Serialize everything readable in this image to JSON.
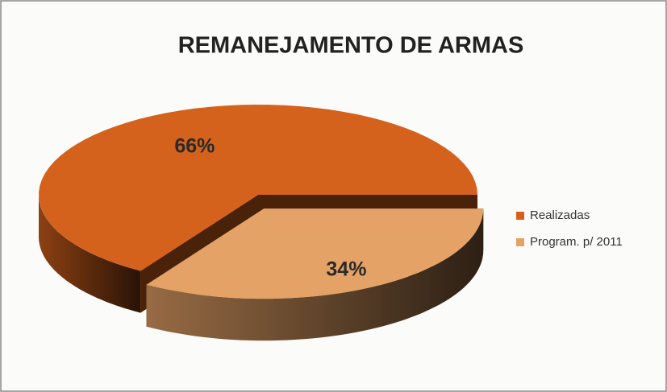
{
  "chart_data": {
    "type": "pie",
    "title": "REMANEJAMENTO DE ARMAS",
    "categories": [
      "Realizadas",
      "Program. p/ 2011"
    ],
    "values": [
      66,
      34
    ],
    "value_labels": [
      "66%",
      "34%"
    ],
    "colors": [
      "#d4621c",
      "#e4a266"
    ],
    "legend": "right"
  }
}
